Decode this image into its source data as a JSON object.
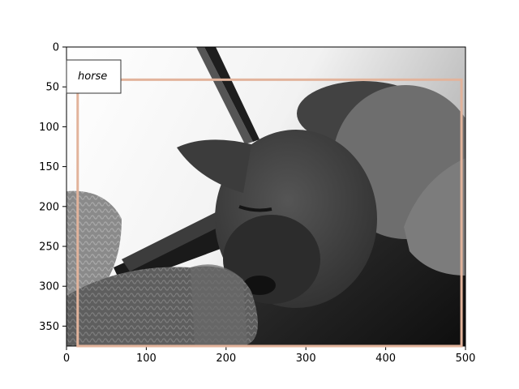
{
  "photo": {
    "subject": "dog-sleeping-on-knitted-blanket",
    "style": "grayscale"
  },
  "axes": {
    "x_ticks": [
      "0",
      "100",
      "200",
      "300",
      "400",
      "500"
    ],
    "y_ticks": [
      "0",
      "50",
      "100",
      "150",
      "200",
      "250",
      "300",
      "350"
    ],
    "xlim": [
      0,
      500
    ],
    "ylim": [
      375,
      0
    ]
  },
  "annotation": {
    "label": "horse",
    "box": {
      "x1": 14,
      "y1": 41,
      "x2": 495,
      "y2": 375
    },
    "box_color": "#e2b39b"
  }
}
